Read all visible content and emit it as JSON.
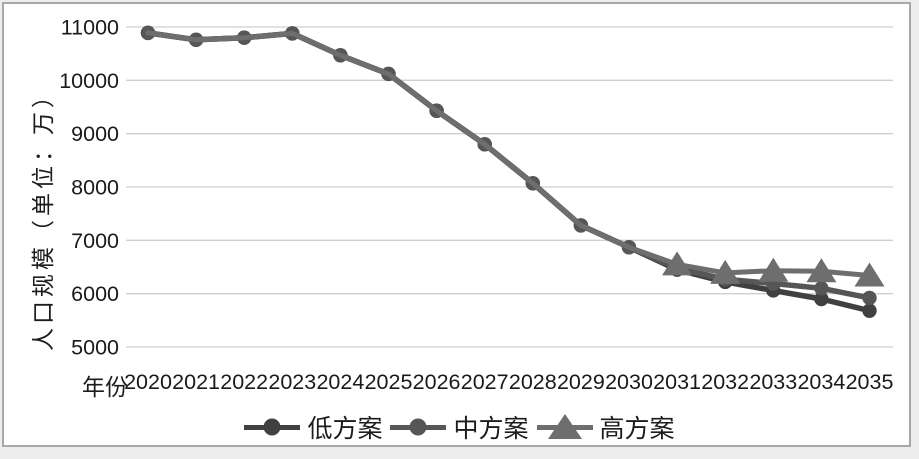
{
  "figure": {
    "y_axis_title": "人口规模（单位：万）",
    "x_axis_title": "年份"
  },
  "colors": {
    "grid": "#cfcfcf",
    "frame_border": "#a8a8a8",
    "text": "#1a1a1a"
  },
  "chart_data": {
    "type": "line",
    "title": "",
    "xlabel": "年份",
    "ylabel": "人口规模（单位：万）",
    "x": [
      "2020",
      "2021",
      "2022",
      "2023",
      "2024",
      "2025",
      "2026",
      "2027",
      "2028",
      "2029",
      "2030",
      "2031",
      "2032",
      "2033",
      "2034",
      "2035"
    ],
    "ylim": [
      5000,
      11000
    ],
    "yticks": [
      5000,
      6000,
      7000,
      8000,
      9000,
      10000,
      11000
    ],
    "grid": "horizontal",
    "legend_position": "bottom",
    "series": [
      {
        "id": "low",
        "name": "低方案",
        "marker": "circle",
        "color": "#404040",
        "values": [
          10890,
          10760,
          10800,
          10880,
          10470,
          10120,
          9430,
          8800,
          8070,
          7280,
          6870,
          6450,
          6220,
          6060,
          5900,
          5680
        ]
      },
      {
        "id": "mid",
        "name": "中方案",
        "marker": "circle",
        "color": "#565656",
        "values": [
          10890,
          10760,
          10800,
          10880,
          10470,
          10120,
          9430,
          8800,
          8070,
          7280,
          6870,
          6480,
          6270,
          6190,
          6100,
          5920
        ]
      },
      {
        "id": "high",
        "name": "高方案",
        "marker": "triangle",
        "color": "#6e6e6e",
        "markers_start_index": 11,
        "values": [
          10890,
          10760,
          10800,
          10880,
          10470,
          10120,
          9430,
          8800,
          8070,
          7280,
          6870,
          6550,
          6390,
          6430,
          6420,
          6340
        ]
      }
    ]
  }
}
